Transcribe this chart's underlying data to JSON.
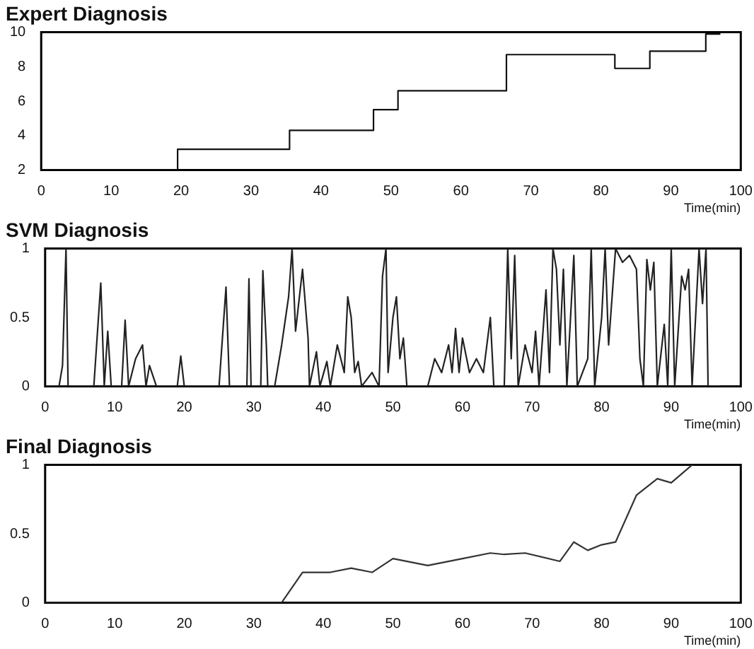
{
  "chart_data": [
    {
      "type": "step",
      "title": "Expert Diagnosis",
      "xlabel": "Time(min)",
      "color": "#111111",
      "marker": "none",
      "grid": false,
      "x": [
        0,
        19.5,
        35.5,
        47.5,
        51,
        66.5,
        82,
        87,
        95,
        97
      ],
      "values": [
        2,
        3.2,
        4.3,
        5.5,
        6.6,
        8.7,
        7.9,
        8.9,
        9.9,
        9.9
      ],
      "xlim": [
        0,
        100
      ],
      "xticks": [
        0,
        10,
        20,
        30,
        40,
        50,
        60,
        70,
        80,
        90,
        100
      ],
      "ylim": [
        2,
        10
      ],
      "yticks": [
        2,
        4,
        6,
        8,
        10
      ]
    },
    {
      "type": "line",
      "title": "SVM Diagnosis",
      "xlabel": "Time(min)",
      "color": "#222222",
      "marker": "none",
      "grid": false,
      "x": [
        0,
        2,
        2.5,
        3,
        3.3,
        7,
        8,
        8.5,
        9,
        9.5,
        11,
        11.5,
        12,
        13,
        14,
        14.5,
        15,
        16,
        19,
        19.5,
        20,
        25,
        26,
        26.5,
        29,
        29.3,
        29.6,
        31,
        31.3,
        31.8,
        32,
        33,
        34,
        35,
        35.5,
        36,
        37,
        37.8,
        38,
        39,
        39.5,
        40.5,
        41,
        42,
        43,
        43.5,
        44,
        44.5,
        45,
        45.5,
        47,
        48,
        48.5,
        49,
        49.3,
        50,
        50.5,
        51,
        51.5,
        52,
        55,
        56,
        57,
        58,
        58.5,
        59,
        59.5,
        60,
        61,
        62,
        63,
        64,
        64.5,
        66,
        66.5,
        67,
        67.5,
        68,
        69,
        70,
        70.5,
        71,
        72,
        72.5,
        73,
        73.5,
        74,
        74.5,
        75,
        76,
        76.5,
        78,
        78.5,
        79,
        80,
        80.5,
        81,
        82,
        83,
        84,
        85,
        85.5,
        86,
        86.5,
        87,
        87.5,
        88,
        89,
        89.5,
        90,
        90.5,
        91.5,
        92,
        92.5,
        93,
        94,
        94.5,
        95,
        95.3,
        97
      ],
      "values": [
        0,
        0,
        0.15,
        1,
        0,
        0,
        0.75,
        0,
        0.4,
        0,
        0,
        0.48,
        0,
        0.2,
        0.3,
        0,
        0.15,
        0,
        0,
        0.22,
        0,
        0,
        0.72,
        0,
        0,
        0.78,
        0,
        0,
        0.84,
        0.3,
        0,
        0,
        0.3,
        0.65,
        1,
        0.4,
        0.85,
        0.35,
        0,
        0.25,
        0,
        0.18,
        0,
        0.3,
        0.1,
        0.65,
        0.5,
        0.1,
        0.18,
        0,
        0.1,
        0,
        0.8,
        1,
        0.1,
        0.5,
        0.65,
        0.2,
        0.35,
        0,
        0,
        0.2,
        0.1,
        0.3,
        0.1,
        0.42,
        0.1,
        0.35,
        0.1,
        0.2,
        0.1,
        0.5,
        0,
        0,
        1,
        0.2,
        0.95,
        0,
        0.3,
        0.1,
        0.4,
        0,
        0.7,
        0.1,
        1,
        0.85,
        0.3,
        0.85,
        0,
        0.95,
        0,
        0.2,
        1,
        0,
        0.5,
        1,
        0.3,
        1,
        0.9,
        0.95,
        0.85,
        0.2,
        0,
        0.92,
        0.7,
        0.9,
        0,
        0.45,
        0,
        1,
        0,
        0.8,
        0.7,
        0.85,
        0,
        1,
        0.6,
        1,
        0,
        0
      ],
      "xlim": [
        0,
        100
      ],
      "xticks": [
        0,
        10,
        20,
        30,
        40,
        50,
        60,
        70,
        80,
        90,
        100
      ],
      "ylim": [
        0,
        1
      ],
      "yticks": [
        0,
        0.5,
        1
      ]
    },
    {
      "type": "line",
      "title": "Final Diagnosis",
      "xlabel": "Time(min)",
      "color": "#333333",
      "marker": "none",
      "grid": false,
      "x": [
        0,
        34,
        37,
        41,
        44,
        47,
        50,
        55,
        60,
        64,
        66,
        69,
        74,
        76,
        78,
        80,
        82,
        85,
        88,
        90,
        93
      ],
      "values": [
        0,
        0,
        0.22,
        0.22,
        0.25,
        0.22,
        0.32,
        0.27,
        0.32,
        0.36,
        0.35,
        0.36,
        0.3,
        0.44,
        0.38,
        0.42,
        0.44,
        0.78,
        0.9,
        0.87,
        1
      ],
      "xlim": [
        0,
        100
      ],
      "xticks": [
        0,
        10,
        20,
        30,
        40,
        50,
        60,
        70,
        80,
        90,
        100
      ],
      "ylim": [
        0,
        1
      ],
      "yticks": [
        0,
        0.5,
        1
      ]
    }
  ]
}
